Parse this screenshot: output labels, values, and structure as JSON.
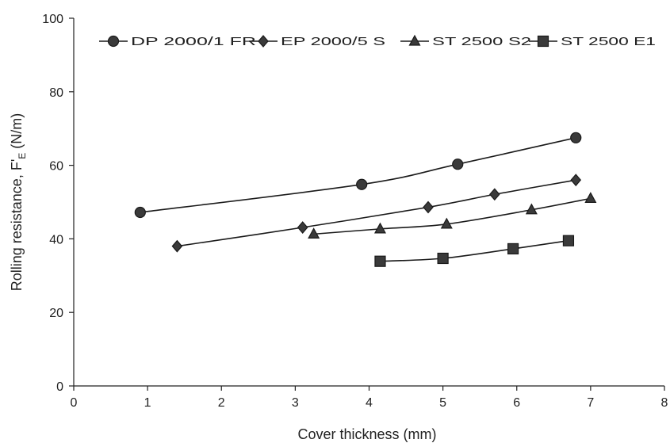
{
  "chart_data": {
    "type": "line",
    "xlabel": "Cover thickness   (mm)",
    "ylabel_main": "Rolling resistance,  F'",
    "ylabel_sub": "E",
    "ylabel_unit": "  (N/m)",
    "xlim": [
      0,
      8
    ],
    "ylim": [
      0,
      100
    ],
    "xticks": [
      0,
      1,
      2,
      3,
      4,
      5,
      6,
      7,
      8
    ],
    "yticks": [
      0,
      20,
      40,
      60,
      80,
      100
    ],
    "grid": false,
    "legend_position": "top",
    "series": [
      {
        "name": "DP 2000/1 FR",
        "marker": "circle",
        "points": [
          [
            0.9,
            47.2
          ],
          [
            3.9,
            54.8
          ],
          [
            5.2,
            60.3
          ],
          [
            6.8,
            67.5
          ]
        ]
      },
      {
        "name": "EP 2000/5 S",
        "marker": "diamond",
        "points": [
          [
            1.4,
            38.0
          ],
          [
            3.1,
            43.1
          ],
          [
            4.8,
            48.6
          ],
          [
            5.7,
            52.1
          ],
          [
            6.8,
            56.0
          ]
        ]
      },
      {
        "name": "ST 2500 S2",
        "marker": "triangle",
        "points": [
          [
            3.25,
            41.3
          ],
          [
            4.15,
            42.7
          ],
          [
            5.05,
            44.0
          ],
          [
            6.2,
            47.9
          ],
          [
            7.0,
            51.0
          ]
        ]
      },
      {
        "name": "ST 2500 E1",
        "marker": "square",
        "points": [
          [
            4.15,
            33.9
          ],
          [
            5.0,
            34.7
          ],
          [
            5.95,
            37.3
          ],
          [
            6.7,
            39.5
          ]
        ]
      }
    ],
    "colors": {
      "line": "#1a1a1a",
      "marker_fill": "#3a3a3a",
      "axis": "#222222"
    }
  }
}
